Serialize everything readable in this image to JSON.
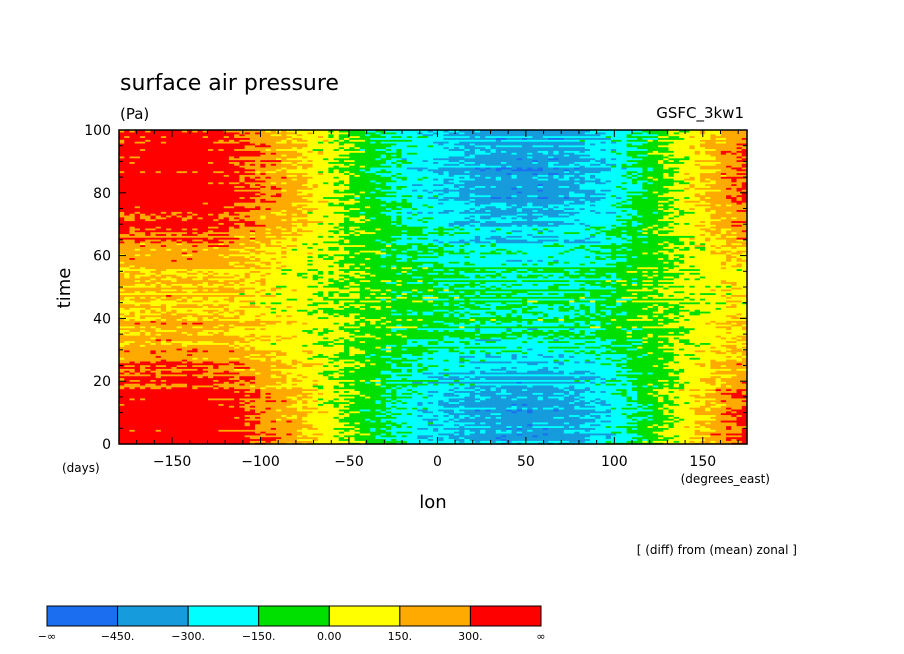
{
  "chart_data": {
    "type": "heatmap",
    "title": "surface air pressure",
    "units": "(Pa)",
    "model": "GSFC_3kw1",
    "xlabel": "lon",
    "ylabel": "time",
    "x_units": "(degrees_east)",
    "y_units": "(days)",
    "xlim": [
      -180,
      175
    ],
    "ylim": [
      0,
      100
    ],
    "x_ticks": [
      -150,
      -100,
      -50,
      0,
      50,
      100,
      150
    ],
    "x_tick_labels": [
      "−150",
      "−100",
      "−50",
      "0",
      "50",
      "100",
      "150"
    ],
    "y_ticks": [
      0,
      20,
      40,
      60,
      80,
      100
    ],
    "y_tick_labels": [
      "0",
      "20",
      "40",
      "60",
      "80",
      "100"
    ],
    "annotation": "[ (diff) from (mean) zonal ]",
    "colorbar": {
      "labels": [
        "−∞",
        "−450.",
        "−300.",
        "−150.",
        "0.00",
        "150.",
        "300.",
        "∞"
      ],
      "colors": [
        "#1b6ef0",
        "#169bdc",
        "#00ffff",
        "#00e000",
        "#ffff00",
        "#ffaa00",
        "#ff0000"
      ],
      "bounds": [
        -600,
        -450,
        -300,
        -150,
        0,
        150,
        300,
        450
      ]
    },
    "profile_lon": [
      -180,
      -160,
      -140,
      -120,
      -100,
      -80,
      -60,
      -40,
      -20,
      0,
      20,
      40,
      60,
      80,
      100,
      120,
      140,
      160,
      175
    ],
    "profile_value": [
      360,
      390,
      400,
      360,
      250,
      160,
      40,
      -80,
      -180,
      -260,
      -320,
      -350,
      -350,
      -320,
      -230,
      -80,
      60,
      200,
      300
    ]
  }
}
